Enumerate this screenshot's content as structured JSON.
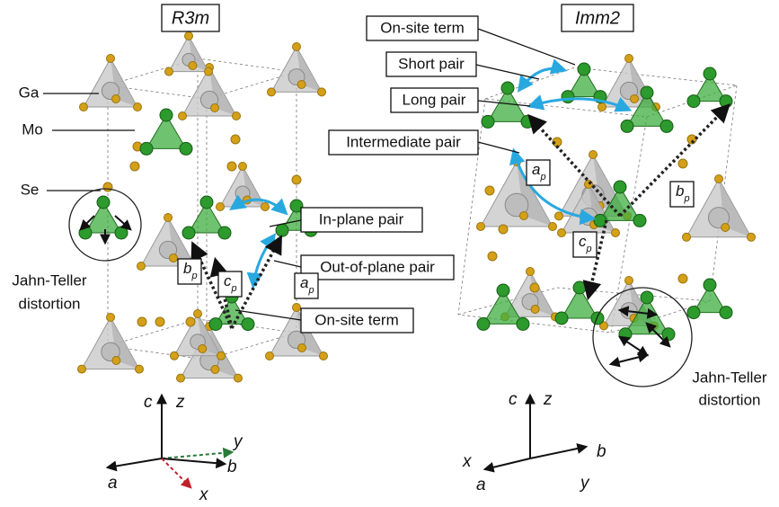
{
  "left": {
    "title": "R3m",
    "atom_labels": [
      "Ga",
      "Mo",
      "Se"
    ],
    "distortion": [
      "Jahn-Teller",
      "distortion"
    ],
    "callouts": [
      "In-plane pair",
      "Out-of-plane pair",
      "On-site term"
    ],
    "vectors": [
      {
        "main": "b",
        "sub": "p"
      },
      {
        "main": "c",
        "sub": "p"
      },
      {
        "main": "a",
        "sub": "p"
      }
    ],
    "axes": [
      "c",
      "z",
      "y",
      "b",
      "a",
      "x"
    ]
  },
  "right": {
    "title": "Imm2",
    "callouts": [
      "On-site term",
      "Short pair",
      "Long pair",
      "Intermediate pair"
    ],
    "vectors": [
      {
        "main": "a",
        "sub": "p"
      },
      {
        "main": "b",
        "sub": "p"
      },
      {
        "main": "c",
        "sub": "p"
      }
    ],
    "distortion": [
      "Jahn-Teller",
      "distortion"
    ],
    "axes": [
      "c",
      "z",
      "b",
      "x",
      "a",
      "y"
    ]
  }
}
